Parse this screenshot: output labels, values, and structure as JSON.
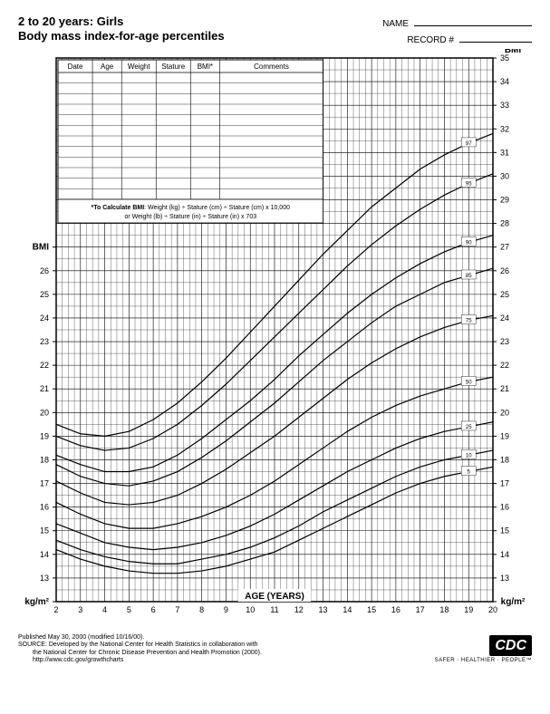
{
  "header": {
    "title1": "2 to 20 years: Girls",
    "title2": "Body mass index-for-age percentiles",
    "name_label": "NAME",
    "record_label": "RECORD #"
  },
  "data_table": {
    "columns": [
      "Date",
      "Age",
      "Weight",
      "Stature",
      "BMI*",
      "Comments"
    ],
    "blank_rows": 12,
    "note": "*To Calculate BMI: Weight (kg) ÷ Stature (cm) ÷ Stature (cm) x 10,000",
    "note2": "or Weight (lb) ÷ Stature (in) ÷ Stature (in) x 703"
  },
  "chart": {
    "type": "line",
    "x_axis": {
      "label": "AGE (YEARS)",
      "min": 2,
      "max": 20,
      "major_step": 1,
      "minor_per_major": 4
    },
    "y_axis_left": {
      "label_top": "BMI",
      "label_bottom": "kg/m²",
      "visible_min": 12,
      "top_label_at": 27
    },
    "y_axis_right": {
      "label_top": "BMI",
      "label_bottom": "kg/m²",
      "min": 12,
      "max": 35,
      "major_step": 1,
      "minor_per_major": 2
    },
    "percentile_curves": [
      {
        "label": "5",
        "points": [
          [
            2,
            14.2
          ],
          [
            3,
            13.8
          ],
          [
            4,
            13.5
          ],
          [
            5,
            13.3
          ],
          [
            6,
            13.2
          ],
          [
            7,
            13.2
          ],
          [
            8,
            13.3
          ],
          [
            9,
            13.5
          ],
          [
            10,
            13.8
          ],
          [
            11,
            14.1
          ],
          [
            12,
            14.6
          ],
          [
            13,
            15.1
          ],
          [
            14,
            15.6
          ],
          [
            15,
            16.1
          ],
          [
            16,
            16.6
          ],
          [
            17,
            17.0
          ],
          [
            18,
            17.3
          ],
          [
            19,
            17.5
          ],
          [
            20,
            17.7
          ]
        ]
      },
      {
        "label": "10",
        "points": [
          [
            2,
            14.6
          ],
          [
            3,
            14.2
          ],
          [
            4,
            13.9
          ],
          [
            5,
            13.7
          ],
          [
            6,
            13.6
          ],
          [
            7,
            13.6
          ],
          [
            8,
            13.8
          ],
          [
            9,
            14.0
          ],
          [
            10,
            14.3
          ],
          [
            11,
            14.7
          ],
          [
            12,
            15.2
          ],
          [
            13,
            15.8
          ],
          [
            14,
            16.3
          ],
          [
            15,
            16.8
          ],
          [
            16,
            17.3
          ],
          [
            17,
            17.7
          ],
          [
            18,
            18.0
          ],
          [
            19,
            18.2
          ],
          [
            20,
            18.4
          ]
        ]
      },
      {
        "label": "25",
        "points": [
          [
            2,
            15.3
          ],
          [
            3,
            14.9
          ],
          [
            4,
            14.5
          ],
          [
            5,
            14.3
          ],
          [
            6,
            14.2
          ],
          [
            7,
            14.3
          ],
          [
            8,
            14.5
          ],
          [
            9,
            14.8
          ],
          [
            10,
            15.2
          ],
          [
            11,
            15.7
          ],
          [
            12,
            16.3
          ],
          [
            13,
            16.9
          ],
          [
            14,
            17.5
          ],
          [
            15,
            18.0
          ],
          [
            16,
            18.5
          ],
          [
            17,
            18.9
          ],
          [
            18,
            19.2
          ],
          [
            19,
            19.4
          ],
          [
            20,
            19.6
          ]
        ]
      },
      {
        "label": "50",
        "points": [
          [
            2,
            16.2
          ],
          [
            3,
            15.7
          ],
          [
            4,
            15.3
          ],
          [
            5,
            15.1
          ],
          [
            6,
            15.1
          ],
          [
            7,
            15.3
          ],
          [
            8,
            15.6
          ],
          [
            9,
            16.0
          ],
          [
            10,
            16.5
          ],
          [
            11,
            17.1
          ],
          [
            12,
            17.8
          ],
          [
            13,
            18.5
          ],
          [
            14,
            19.2
          ],
          [
            15,
            19.8
          ],
          [
            16,
            20.3
          ],
          [
            17,
            20.7
          ],
          [
            18,
            21.0
          ],
          [
            19,
            21.3
          ],
          [
            20,
            21.5
          ]
        ]
      },
      {
        "label": "75",
        "points": [
          [
            2,
            17.1
          ],
          [
            3,
            16.6
          ],
          [
            4,
            16.2
          ],
          [
            5,
            16.1
          ],
          [
            6,
            16.2
          ],
          [
            7,
            16.5
          ],
          [
            8,
            17.0
          ],
          [
            9,
            17.6
          ],
          [
            10,
            18.3
          ],
          [
            11,
            19.0
          ],
          [
            12,
            19.8
          ],
          [
            13,
            20.6
          ],
          [
            14,
            21.4
          ],
          [
            15,
            22.1
          ],
          [
            16,
            22.7
          ],
          [
            17,
            23.2
          ],
          [
            18,
            23.6
          ],
          [
            19,
            23.9
          ],
          [
            20,
            24.1
          ]
        ]
      },
      {
        "label": "85",
        "points": [
          [
            2,
            17.8
          ],
          [
            3,
            17.3
          ],
          [
            4,
            17.0
          ],
          [
            5,
            16.9
          ],
          [
            6,
            17.1
          ],
          [
            7,
            17.5
          ],
          [
            8,
            18.1
          ],
          [
            9,
            18.8
          ],
          [
            10,
            19.6
          ],
          [
            11,
            20.4
          ],
          [
            12,
            21.3
          ],
          [
            13,
            22.2
          ],
          [
            14,
            23.0
          ],
          [
            15,
            23.8
          ],
          [
            16,
            24.5
          ],
          [
            17,
            25.0
          ],
          [
            18,
            25.5
          ],
          [
            19,
            25.8
          ],
          [
            20,
            26.1
          ]
        ]
      },
      {
        "label": "90",
        "points": [
          [
            2,
            18.2
          ],
          [
            3,
            17.8
          ],
          [
            4,
            17.5
          ],
          [
            5,
            17.5
          ],
          [
            6,
            17.7
          ],
          [
            7,
            18.2
          ],
          [
            8,
            18.9
          ],
          [
            9,
            19.7
          ],
          [
            10,
            20.5
          ],
          [
            11,
            21.4
          ],
          [
            12,
            22.4
          ],
          [
            13,
            23.3
          ],
          [
            14,
            24.2
          ],
          [
            15,
            25.0
          ],
          [
            16,
            25.7
          ],
          [
            17,
            26.3
          ],
          [
            18,
            26.8
          ],
          [
            19,
            27.2
          ],
          [
            20,
            27.5
          ]
        ]
      },
      {
        "label": "95",
        "points": [
          [
            2,
            19.0
          ],
          [
            3,
            18.6
          ],
          [
            4,
            18.4
          ],
          [
            5,
            18.5
          ],
          [
            6,
            18.9
          ],
          [
            7,
            19.5
          ],
          [
            8,
            20.3
          ],
          [
            9,
            21.2
          ],
          [
            10,
            22.2
          ],
          [
            11,
            23.2
          ],
          [
            12,
            24.2
          ],
          [
            13,
            25.2
          ],
          [
            14,
            26.2
          ],
          [
            15,
            27.1
          ],
          [
            16,
            27.9
          ],
          [
            17,
            28.6
          ],
          [
            18,
            29.2
          ],
          [
            19,
            29.7
          ],
          [
            20,
            30.1
          ]
        ]
      },
      {
        "label": "97",
        "points": [
          [
            2,
            19.5
          ],
          [
            3,
            19.1
          ],
          [
            4,
            19.0
          ],
          [
            5,
            19.2
          ],
          [
            6,
            19.7
          ],
          [
            7,
            20.4
          ],
          [
            8,
            21.3
          ],
          [
            9,
            22.3
          ],
          [
            10,
            23.4
          ],
          [
            11,
            24.5
          ],
          [
            12,
            25.6
          ],
          [
            13,
            26.7
          ],
          [
            14,
            27.7
          ],
          [
            15,
            28.7
          ],
          [
            16,
            29.5
          ],
          [
            17,
            30.3
          ],
          [
            18,
            30.9
          ],
          [
            19,
            31.4
          ],
          [
            20,
            31.8
          ]
        ]
      }
    ],
    "colors": {
      "grid": "#000000",
      "curve": "#000000",
      "text": "#000000",
      "table_border": "#000000",
      "background": "#ffffff"
    },
    "line_width": 1.2,
    "grid_line_width_minor": 0.3,
    "grid_line_width_major": 0.6,
    "axis_font_size": 9,
    "label_font_size": 10
  },
  "footer": {
    "line1": "Published May 30, 2000 (modified 10/16/00).",
    "line2": "SOURCE: Developed by the National Center for Health Statistics in collaboration with",
    "line3": "the National Center for Chronic Disease Prevention and Health Promotion (2000).",
    "line4": "http://www.cdc.gov/growthcharts",
    "logo_text": "CDC",
    "logo_tagline": "SAFER · HEALTHIER · PEOPLE™"
  }
}
